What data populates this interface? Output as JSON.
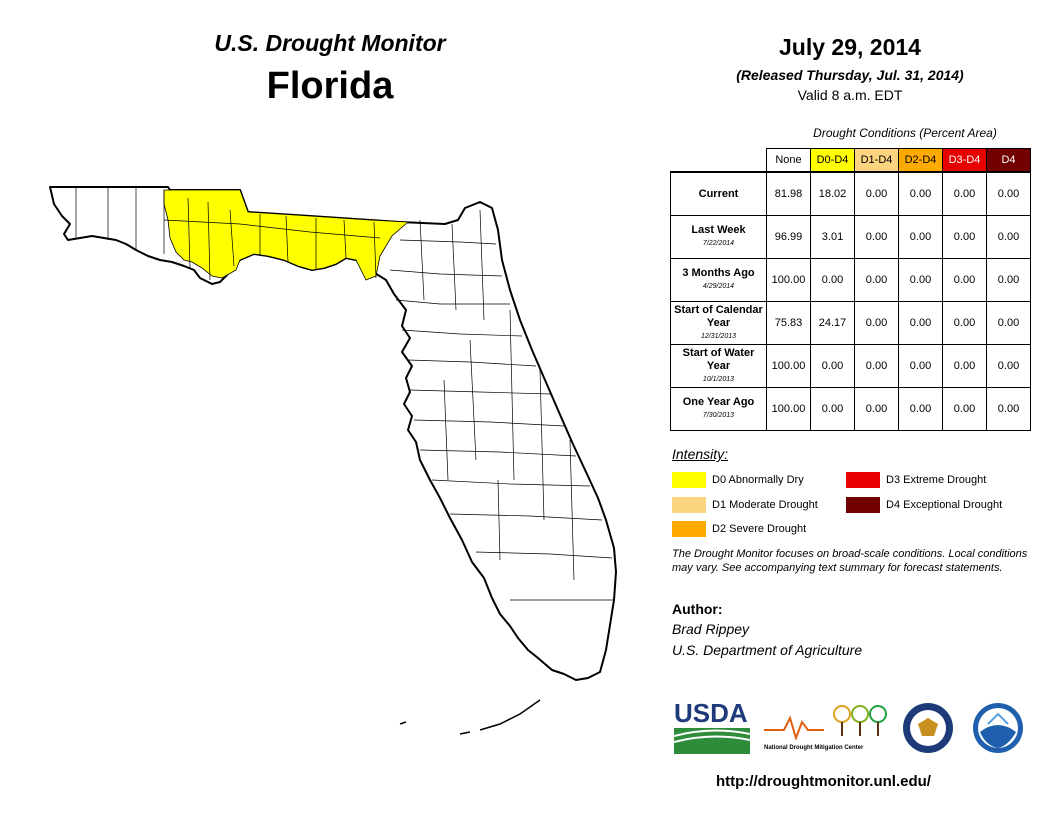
{
  "header": {
    "monitor_title": "U.S. Drought Monitor",
    "state": "Florida",
    "date": "July 29, 2014",
    "released": "(Released Thursday, Jul. 31, 2014)",
    "valid": "Valid 8 a.m. EDT"
  },
  "table": {
    "caption": "Drought Conditions (Percent Area)",
    "columns": [
      "None",
      "D0-D4",
      "D1-D4",
      "D2-D4",
      "D3-D4",
      "D4"
    ],
    "column_colors": [
      "#ffffff",
      "#ffff00",
      "#fcd37f",
      "#ffaa00",
      "#e60000",
      "#730000"
    ],
    "rows": [
      {
        "label": "Current",
        "sub": "",
        "values": [
          "81.98",
          "18.02",
          "0.00",
          "0.00",
          "0.00",
          "0.00"
        ]
      },
      {
        "label": "Last Week",
        "sub": "7/22/2014",
        "values": [
          "96.99",
          "3.01",
          "0.00",
          "0.00",
          "0.00",
          "0.00"
        ]
      },
      {
        "label": "3 Months Ago",
        "sub": "4/29/2014",
        "values": [
          "100.00",
          "0.00",
          "0.00",
          "0.00",
          "0.00",
          "0.00"
        ]
      },
      {
        "label": "Start of Calendar Year",
        "sub": "12/31/2013",
        "values": [
          "75.83",
          "24.17",
          "0.00",
          "0.00",
          "0.00",
          "0.00"
        ]
      },
      {
        "label": "Start of Water Year",
        "sub": "10/1/2013",
        "values": [
          "100.00",
          "0.00",
          "0.00",
          "0.00",
          "0.00",
          "0.00"
        ]
      },
      {
        "label": "One Year Ago",
        "sub": "7/30/2013",
        "values": [
          "100.00",
          "0.00",
          "0.00",
          "0.00",
          "0.00",
          "0.00"
        ]
      }
    ]
  },
  "legend": {
    "title": "Intensity:",
    "items": [
      {
        "label": "D0 Abnormally Dry",
        "color": "#ffff00"
      },
      {
        "label": "D1 Moderate Drought",
        "color": "#fcd37f"
      },
      {
        "label": "D2 Severe Drought",
        "color": "#ffaa00"
      },
      {
        "label": "D3 Extreme Drought",
        "color": "#e60000"
      },
      {
        "label": "D4 Exceptional Drought",
        "color": "#730000"
      }
    ]
  },
  "note": "The Drought Monitor focuses on broad-scale conditions. Local conditions may vary. See accompanying text summary for forecast statements.",
  "author": {
    "label": "Author:",
    "name": "Brad Rippey",
    "org": "U.S. Department of Agriculture"
  },
  "logos": {
    "usda": "USDA",
    "ndmc": "National Drought Mitigation Center"
  },
  "url": "http://droughtmonitor.unl.edu/",
  "map": {
    "drought_region": "D0 Abnormally Dry",
    "drought_color": "#ffff00"
  }
}
